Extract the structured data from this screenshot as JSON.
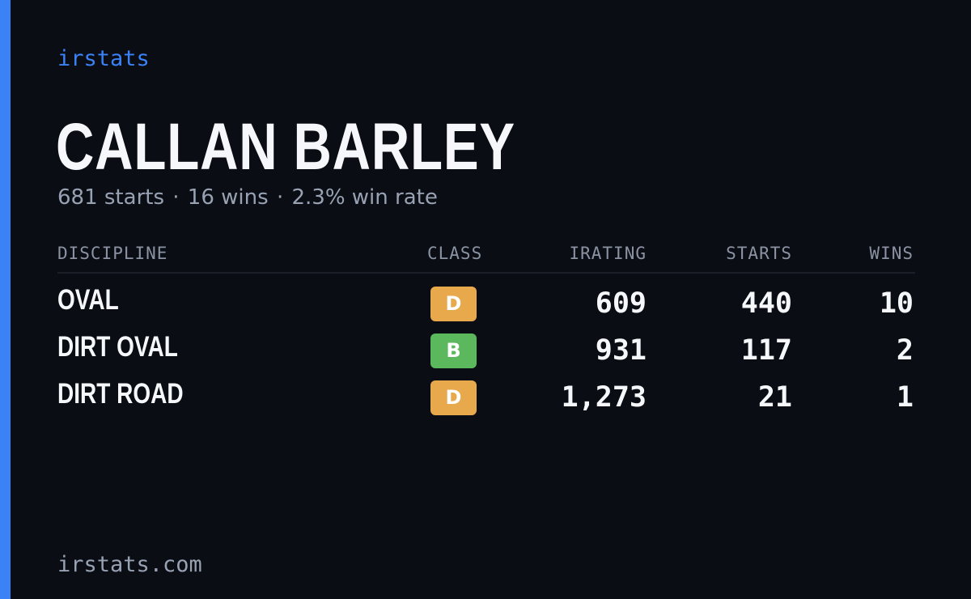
{
  "brand": "irstats",
  "driver": {
    "name": "CALLAN BARLEY",
    "starts_text": "681 starts",
    "wins_text": "16 wins",
    "win_rate_text": "2.3% win rate",
    "separator": "·"
  },
  "table": {
    "headers": {
      "discipline": "DISCIPLINE",
      "class": "CLASS",
      "irating": "IRATING",
      "starts": "STARTS",
      "wins": "WINS"
    },
    "rows": [
      {
        "discipline": "OVAL",
        "class": "D",
        "class_color": "#e8a84c",
        "irating": "609",
        "starts": "440",
        "wins": "10"
      },
      {
        "discipline": "DIRT OVAL",
        "class": "B",
        "class_color": "#5cb85c",
        "irating": "931",
        "starts": "117",
        "wins": "2"
      },
      {
        "discipline": "DIRT ROAD",
        "class": "D",
        "class_color": "#e8a84c",
        "irating": "1,273",
        "starts": "21",
        "wins": "1"
      }
    ]
  },
  "footer": "irstats.com",
  "colors": {
    "background": "#0a0d14",
    "accent": "#3b82f6",
    "muted_text": "#98a2b3",
    "class_d": "#e8a84c",
    "class_b": "#5cb85c"
  }
}
